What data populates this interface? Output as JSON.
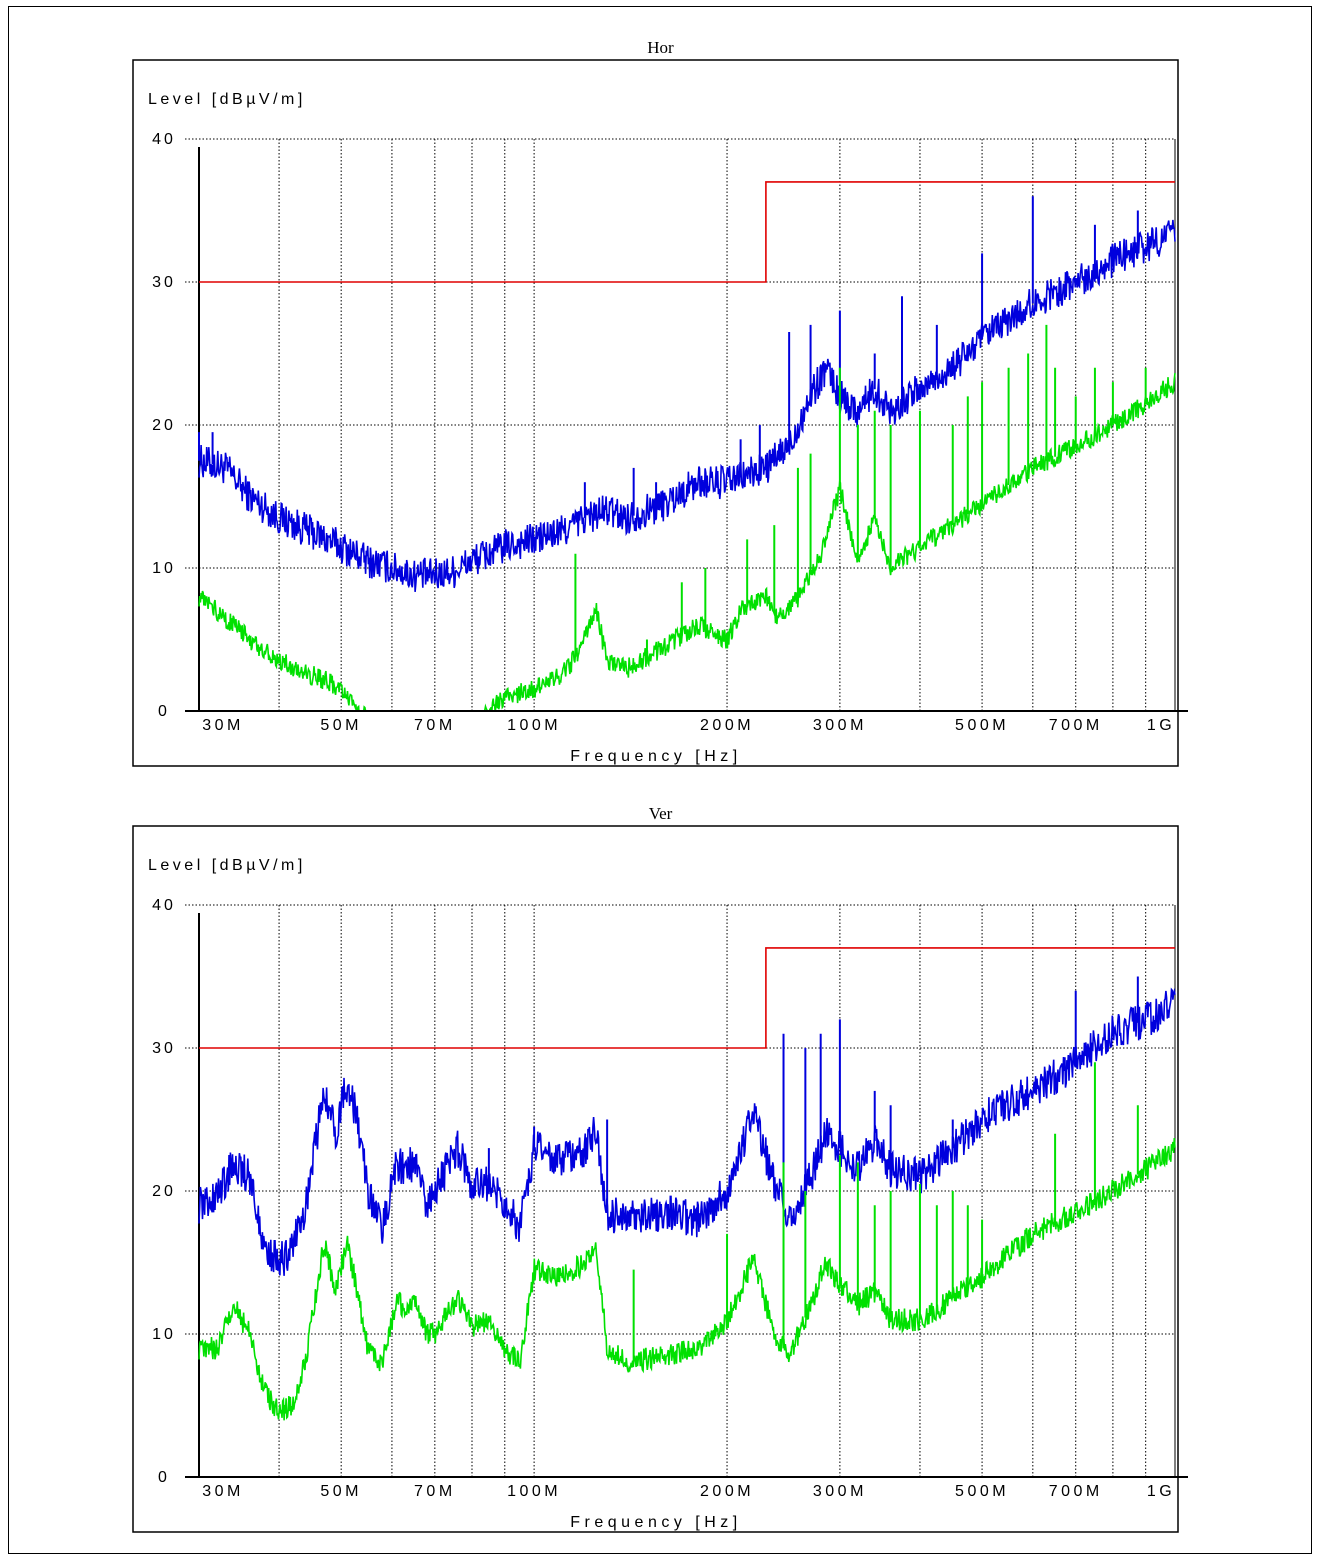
{
  "colors": {
    "limit": "#e00000",
    "peak": "#0000dd",
    "average": "#00e000",
    "grid": "#000000"
  },
  "chart_data": [
    {
      "type": "line",
      "title": "Hor",
      "ylabel": "Level [dBµV/m]",
      "xlabel": "Frequency [Hz]",
      "xscale": "log",
      "xlim": [
        30,
        1000
      ],
      "ylim": [
        0,
        40
      ],
      "grid": true,
      "y_ticks": [
        "0",
        "10",
        "20",
        "30",
        "40"
      ],
      "x_ticks": [
        {
          "v": 30,
          "label": "30M"
        },
        {
          "v": 50,
          "label": "50M"
        },
        {
          "v": 70,
          "label": "70M"
        },
        {
          "v": 100,
          "label": "100M"
        },
        {
          "v": 200,
          "label": "200M"
        },
        {
          "v": 300,
          "label": "300M"
        },
        {
          "v": 500,
          "label": "500M"
        },
        {
          "v": 700,
          "label": "700M"
        },
        {
          "v": 1000,
          "label": "1G"
        }
      ],
      "limit": {
        "x": [
          30,
          230,
          230,
          1000
        ],
        "y": [
          30,
          30,
          37,
          37
        ]
      },
      "series": [
        {
          "color": "peak",
          "noise": 1.2,
          "x": [
            30,
            33,
            36,
            40,
            45,
            50,
            55,
            60,
            65,
            70,
            75,
            80,
            90,
            100,
            110,
            120,
            130,
            140,
            160,
            180,
            200,
            215,
            230,
            250,
            270,
            285,
            300,
            320,
            340,
            360,
            400,
            450,
            500,
            600,
            700,
            800,
            900,
            1000
          ],
          "y": [
            17.5,
            17,
            15,
            13.5,
            12.5,
            11.5,
            10.5,
            10,
            9.5,
            9.5,
            9.8,
            10.5,
            11.5,
            12,
            12.5,
            13.5,
            14,
            13.5,
            14.5,
            16,
            16,
            16.5,
            17,
            18.5,
            22,
            24,
            22,
            21,
            22.5,
            21,
            22.5,
            24,
            26,
            28.5,
            30,
            31.5,
            32.5,
            33.5
          ],
          "spikes": [
            [
              30,
              19.5
            ],
            [
              31.5,
              19.5
            ],
            [
              120,
              16
            ],
            [
              143,
              17
            ],
            [
              155,
              16
            ],
            [
              210,
              19
            ],
            [
              225,
              20
            ],
            [
              250,
              26.5
            ],
            [
              270,
              27
            ],
            [
              300,
              28
            ],
            [
              340,
              25
            ],
            [
              375,
              29
            ],
            [
              425,
              27
            ],
            [
              500,
              32
            ],
            [
              600,
              36
            ],
            [
              750,
              34
            ],
            [
              875,
              35
            ]
          ]
        },
        {
          "color": "average",
          "noise": 0.7,
          "x": [
            30,
            33,
            36,
            40,
            45,
            48,
            52,
            56,
            60,
            70,
            80,
            90,
            100,
            110,
            115,
            120,
            125,
            130,
            140,
            160,
            180,
            200,
            210,
            230,
            240,
            260,
            280,
            300,
            320,
            330,
            340,
            360,
            400,
            450,
            500,
            600,
            700,
            800,
            900,
            1000
          ],
          "y": [
            8,
            6.5,
            5,
            3.5,
            2.5,
            2,
            0.5,
            -1,
            -3,
            -3,
            -1,
            1,
            1.5,
            2.5,
            3.5,
            5,
            7,
            3.5,
            3,
            4.5,
            6,
            5,
            7,
            8,
            6.5,
            8,
            11,
            15.5,
            10.5,
            12,
            13.5,
            10,
            11.5,
            13,
            14.5,
            17,
            18.5,
            20,
            21.5,
            23
          ],
          "spikes": [
            [
              116,
              11
            ],
            [
              150,
              5
            ],
            [
              170,
              9
            ],
            [
              185,
              10
            ],
            [
              215,
              12
            ],
            [
              237,
              13
            ],
            [
              258,
              17
            ],
            [
              270,
              18
            ],
            [
              300,
              24
            ],
            [
              320,
              20
            ],
            [
              340,
              21
            ],
            [
              360,
              20
            ],
            [
              400,
              21
            ],
            [
              450,
              20
            ],
            [
              475,
              22
            ],
            [
              500,
              23
            ],
            [
              550,
              24
            ],
            [
              590,
              25
            ],
            [
              630,
              27
            ],
            [
              650,
              24
            ],
            [
              700,
              22
            ],
            [
              750,
              24
            ],
            [
              800,
              23
            ],
            [
              900,
              24
            ]
          ]
        }
      ]
    },
    {
      "type": "line",
      "title": "Ver",
      "ylabel": "Level [dBµV/m]",
      "xlabel": "Frequency [Hz]",
      "xscale": "log",
      "xlim": [
        30,
        1000
      ],
      "ylim": [
        0,
        40
      ],
      "grid": true,
      "y_ticks": [
        "0",
        "10",
        "20",
        "30",
        "40"
      ],
      "x_ticks": [
        {
          "v": 30,
          "label": "30M"
        },
        {
          "v": 50,
          "label": "50M"
        },
        {
          "v": 70,
          "label": "70M"
        },
        {
          "v": 100,
          "label": "100M"
        },
        {
          "v": 200,
          "label": "200M"
        },
        {
          "v": 300,
          "label": "300M"
        },
        {
          "v": 500,
          "label": "500M"
        },
        {
          "v": 700,
          "label": "700M"
        },
        {
          "v": 1000,
          "label": "1G"
        }
      ],
      "limit": {
        "x": [
          30,
          230,
          230,
          1000
        ],
        "y": [
          30,
          30,
          37,
          37
        ]
      },
      "series": [
        {
          "color": "peak",
          "noise": 1.3,
          "x": [
            30,
            32,
            34,
            36,
            38,
            40,
            42,
            44,
            47,
            49,
            51,
            53,
            55,
            58,
            61,
            63,
            65,
            68,
            70,
            73,
            76,
            80,
            85,
            90,
            95,
            100,
            110,
            115,
            120,
            125,
            130,
            140,
            160,
            180,
            200,
            210,
            220,
            230,
            240,
            250,
            270,
            285,
            300,
            320,
            340,
            360,
            400,
            450,
            500,
            600,
            700,
            800,
            900,
            1000
          ],
          "y": [
            19,
            19.5,
            22,
            21,
            16,
            15,
            16,
            19,
            27,
            24,
            27.5,
            25,
            20,
            17.5,
            22,
            21.5,
            22,
            19,
            20,
            21.5,
            23,
            20.5,
            20.5,
            19,
            17.5,
            23,
            22,
            22.5,
            23,
            24.5,
            18.5,
            18,
            18.5,
            18,
            20,
            23,
            25.5,
            22.5,
            20,
            18,
            21,
            24,
            23,
            21.5,
            23.5,
            21.5,
            21,
            23,
            25,
            27,
            29,
            31,
            32,
            33
          ],
          "spikes": [
            [
              85,
              23
            ],
            [
              100,
              24.5
            ],
            [
              130,
              25
            ],
            [
              245,
              31
            ],
            [
              265,
              30
            ],
            [
              280,
              31
            ],
            [
              300,
              32
            ],
            [
              340,
              27
            ],
            [
              360,
              26
            ],
            [
              450,
              25
            ],
            [
              700,
              34
            ],
            [
              875,
              35
            ]
          ]
        },
        {
          "color": "average",
          "noise": 0.8,
          "x": [
            30,
            32,
            34,
            36,
            38,
            40,
            42,
            44,
            47,
            49,
            51,
            53,
            55,
            58,
            61,
            63,
            65,
            68,
            70,
            73,
            76,
            80,
            85,
            90,
            95,
            100,
            110,
            115,
            120,
            125,
            130,
            140,
            160,
            180,
            200,
            210,
            220,
            230,
            240,
            250,
            270,
            285,
            300,
            320,
            340,
            360,
            400,
            450,
            500,
            600,
            700,
            800,
            900,
            1000
          ],
          "y": [
            9,
            9,
            12,
            10,
            6,
            4.5,
            5,
            8,
            16.5,
            13,
            16.5,
            13,
            9,
            8,
            12.5,
            11.5,
            12.5,
            10,
            10,
            11.5,
            12.5,
            10.5,
            11,
            9,
            8,
            14.5,
            14,
            14.5,
            15,
            16,
            9,
            8,
            8.5,
            9,
            11,
            13,
            15.5,
            12,
            9.5,
            8.5,
            12,
            15,
            13.5,
            12,
            13,
            11,
            11,
            12.5,
            14,
            17,
            18.5,
            20,
            21.5,
            23
          ],
          "spikes": [
            [
              143,
              14.5
            ],
            [
              200,
              17
            ],
            [
              245,
              22
            ],
            [
              265,
              20
            ],
            [
              300,
              22.5
            ],
            [
              320,
              22
            ],
            [
              340,
              19
            ],
            [
              360,
              20
            ],
            [
              400,
              20.5
            ],
            [
              425,
              19
            ],
            [
              450,
              20
            ],
            [
              475,
              19
            ],
            [
              500,
              18
            ],
            [
              650,
              24
            ],
            [
              750,
              29
            ],
            [
              875,
              26
            ]
          ]
        }
      ]
    }
  ]
}
